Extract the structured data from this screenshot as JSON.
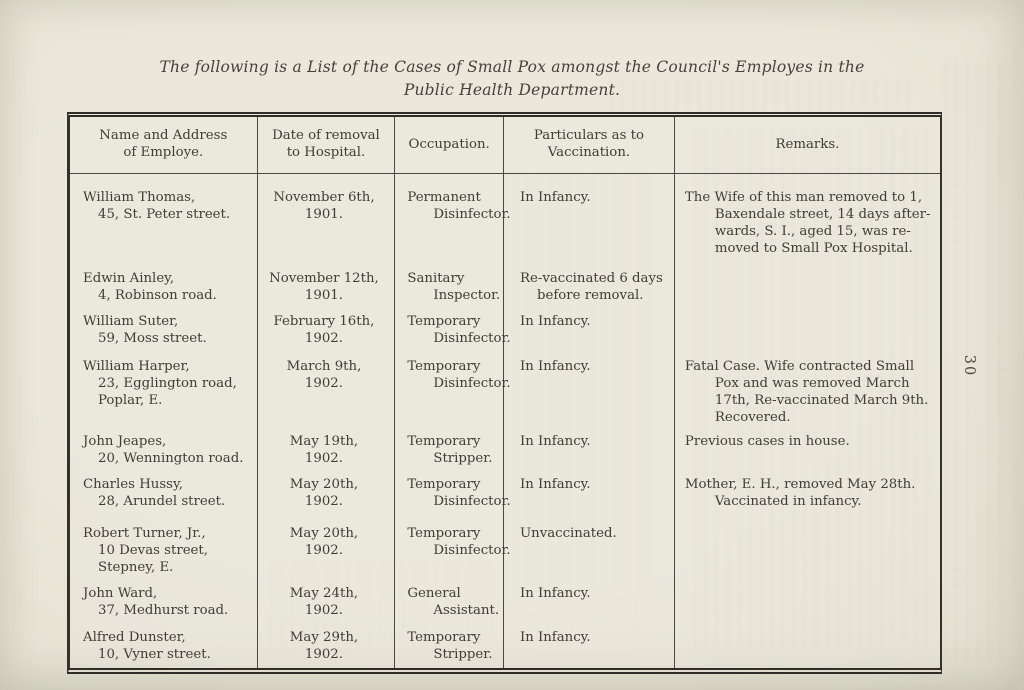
{
  "colors": {
    "paper": "#eae7da",
    "ink": "#3f3d36",
    "rule": "#4b483f"
  },
  "page": {
    "number": "30",
    "title": {
      "lines": [
        "The following is a List of the Cases of Small Pox amongst the Council's Employes in the",
        "Public Health Department."
      ]
    }
  },
  "table": {
    "headers": [
      [
        "Name and Address",
        "of Employe."
      ],
      [
        "Date of removal",
        "to Hospital."
      ],
      [
        "Occupation."
      ],
      [
        "Particulars as to",
        "Vaccination."
      ],
      [
        "Remarks."
      ]
    ],
    "rows": [
      {
        "cells": [
          [
            "William Thomas,",
            "45, St. Peter street."
          ],
          [
            "November 6th,",
            "1901."
          ],
          [
            "Permanent",
            "Disinfector."
          ],
          [
            "In Infancy."
          ],
          [
            "The Wife of this man removed to 1,",
            "Baxendale street, 14 days after-",
            "wards, S. I., aged 15, was re-",
            "moved to Small Pox Hospital."
          ]
        ]
      },
      {
        "cells": [
          [
            "Edwin Ainley,",
            "4, Robinson road."
          ],
          [
            "November 12th,",
            "1901."
          ],
          [
            "Sanitary",
            "Inspector."
          ],
          [
            "Re-vaccinated 6 days",
            "before removal."
          ],
          []
        ]
      },
      {
        "cells": [
          [
            "William Suter,",
            "59, Moss street."
          ],
          [
            "February 16th,",
            "1902."
          ],
          [
            "Temporary",
            "Disinfector."
          ],
          [
            "In Infancy."
          ],
          []
        ]
      },
      {
        "cells": [
          [
            "William Harper,",
            "23, Egglington road,",
            "Poplar, E."
          ],
          [
            "March 9th,",
            "1902."
          ],
          [
            "Temporary",
            "Disinfector."
          ],
          [
            "In Infancy."
          ],
          [
            "Fatal Case.  Wife contracted Small",
            "Pox and was removed March",
            "17th, Re-vaccinated March 9th.",
            "Recovered."
          ]
        ]
      },
      {
        "cells": [
          [
            "John Jeapes,",
            "20, Wennington road."
          ],
          [
            "May 19th,",
            "1902."
          ],
          [
            "Temporary",
            "Stripper."
          ],
          [
            "In Infancy."
          ],
          [
            "Previous cases in house."
          ]
        ]
      },
      {
        "cells": [
          [
            "Charles Hussy,",
            "28, Arundel street."
          ],
          [
            "May 20th,",
            "1902."
          ],
          [
            "Temporary",
            "Disinfector."
          ],
          [
            "In Infancy."
          ],
          [
            "Mother, E. H., removed May 28th.",
            "Vaccinated in infancy."
          ]
        ]
      },
      {
        "cells": [
          [
            "Robert Turner, Jr.,",
            "10 Devas street,",
            "Stepney, E."
          ],
          [
            "May 20th,",
            "1902."
          ],
          [
            "Temporary",
            "Disinfector."
          ],
          [
            "Unvaccinated."
          ],
          []
        ]
      },
      {
        "cells": [
          [
            "John Ward,",
            "37, Medhurst road."
          ],
          [
            "May 24th,",
            "1902."
          ],
          [
            "General",
            "Assistant."
          ],
          [
            "In Infancy."
          ],
          []
        ]
      },
      {
        "cells": [
          [
            "Alfred Dunster,",
            "10, Vyner street."
          ],
          [
            "May 29th,",
            "1902."
          ],
          [
            "Temporary",
            "Stripper."
          ],
          [
            "In Infancy."
          ],
          []
        ]
      }
    ]
  }
}
